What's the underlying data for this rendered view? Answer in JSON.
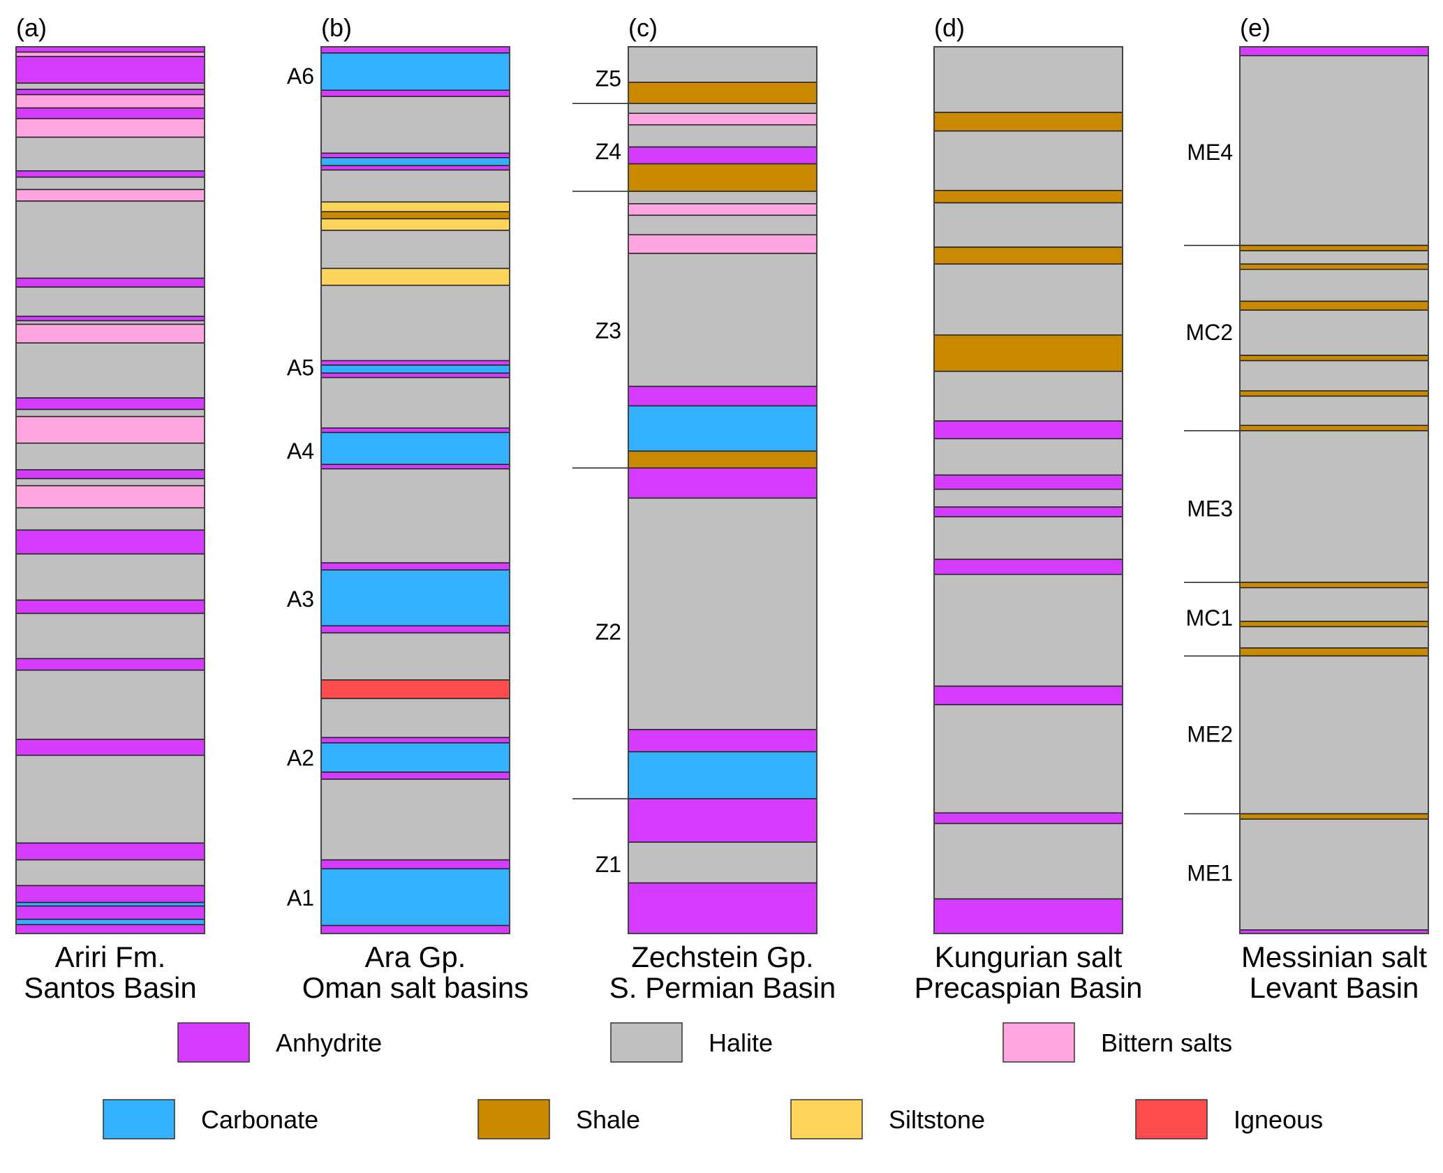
{
  "chart_data": {
    "type": "stratigraphic-columns",
    "title": "",
    "depth_scale": "relative position from top (0) to base (100) of each column",
    "lithology_colors": {
      "Anhydrite": "#d63cff",
      "Halite": "#c0c0c0",
      "Bittern salts": "#ffa6e0",
      "Carbonate": "#33b1ff",
      "Shale": "#c98a00",
      "Siltstone": "#ffd45a",
      "Igneous": "#ff4b4b"
    },
    "legend": [
      {
        "label": "Anhydrite",
        "row": 1
      },
      {
        "label": "Halite",
        "row": 1
      },
      {
        "label": "Bittern salts",
        "row": 1
      },
      {
        "label": "Carbonate",
        "row": 2
      },
      {
        "label": "Shale",
        "row": 2
      },
      {
        "label": "Siltstone",
        "row": 2
      },
      {
        "label": "Igneous",
        "row": 2
      }
    ],
    "columns": [
      {
        "panel": "(a)",
        "title_line1": "Ariri Fm.",
        "title_line2": "Santos Basin",
        "unit_labels": [],
        "unit_boundaries": [],
        "layers": [
          [
            "Anhydrite",
            0.0,
            0.6
          ],
          [
            "Bittern salts",
            0.6,
            1.1
          ],
          [
            "Anhydrite",
            1.1,
            4.1
          ],
          [
            "Halite",
            4.1,
            4.8
          ],
          [
            "Anhydrite",
            4.8,
            5.4
          ],
          [
            "Bittern salts",
            5.4,
            6.9
          ],
          [
            "Anhydrite",
            6.9,
            8.1
          ],
          [
            "Bittern salts",
            8.1,
            10.2
          ],
          [
            "Halite",
            10.2,
            14.0
          ],
          [
            "Anhydrite",
            14.0,
            14.7
          ],
          [
            "Halite",
            14.7,
            16.1
          ],
          [
            "Bittern salts",
            16.1,
            17.4
          ],
          [
            "Halite",
            17.4,
            26.1
          ],
          [
            "Anhydrite",
            26.1,
            27.1
          ],
          [
            "Halite",
            27.1,
            30.4
          ],
          [
            "Anhydrite",
            30.4,
            30.9
          ],
          [
            "Halite",
            30.9,
            31.3
          ],
          [
            "Bittern salts",
            31.3,
            33.4
          ],
          [
            "Halite",
            33.4,
            39.6
          ],
          [
            "Anhydrite",
            39.6,
            40.9
          ],
          [
            "Halite",
            40.9,
            41.7
          ],
          [
            "Bittern salts",
            41.7,
            44.7
          ],
          [
            "Halite",
            44.7,
            47.7
          ],
          [
            "Anhydrite",
            47.7,
            48.7
          ],
          [
            "Halite",
            48.7,
            49.5
          ],
          [
            "Bittern salts",
            49.5,
            52.0
          ],
          [
            "Halite",
            52.0,
            54.5
          ],
          [
            "Anhydrite",
            54.5,
            57.2
          ],
          [
            "Halite",
            57.2,
            62.4
          ],
          [
            "Anhydrite",
            62.4,
            63.9
          ],
          [
            "Halite",
            63.9,
            69.0
          ],
          [
            "Anhydrite",
            69.0,
            70.3
          ],
          [
            "Halite",
            70.3,
            78.1
          ],
          [
            "Anhydrite",
            78.1,
            79.9
          ],
          [
            "Halite",
            79.9,
            89.8
          ],
          [
            "Anhydrite",
            89.8,
            91.7
          ],
          [
            "Halite",
            91.7,
            94.6
          ],
          [
            "Anhydrite",
            94.6,
            96.5
          ],
          [
            "Carbonate",
            96.5,
            96.9
          ],
          [
            "Anhydrite",
            96.9,
            98.4
          ],
          [
            "Carbonate",
            98.4,
            99.0
          ],
          [
            "Anhydrite",
            99.0,
            100.0
          ]
        ]
      },
      {
        "panel": "(b)",
        "title_line1": "Ara Gp.",
        "title_line2": "Oman salt basins",
        "unit_labels": [
          {
            "text": "A6",
            "at": 3.3
          },
          {
            "text": "A5",
            "at": 36.2
          },
          {
            "text": "A4",
            "at": 45.6
          },
          {
            "text": "A3",
            "at": 62.3
          },
          {
            "text": "A2",
            "at": 80.2
          },
          {
            "text": "A1",
            "at": 96.0
          }
        ],
        "unit_boundaries": [],
        "layers": [
          [
            "Anhydrite",
            0.0,
            0.7
          ],
          [
            "Carbonate",
            0.7,
            4.9
          ],
          [
            "Anhydrite",
            4.9,
            5.6
          ],
          [
            "Halite",
            5.6,
            12.0
          ],
          [
            "Anhydrite",
            12.0,
            12.5
          ],
          [
            "Carbonate",
            12.5,
            13.4
          ],
          [
            "Anhydrite",
            13.4,
            13.9
          ],
          [
            "Halite",
            13.9,
            17.5
          ],
          [
            "Siltstone",
            17.5,
            18.6
          ],
          [
            "Shale",
            18.6,
            19.4
          ],
          [
            "Siltstone",
            19.4,
            20.7
          ],
          [
            "Halite",
            20.7,
            25.0
          ],
          [
            "Siltstone",
            25.0,
            26.9
          ],
          [
            "Halite",
            26.9,
            35.4
          ],
          [
            "Anhydrite",
            35.4,
            35.9
          ],
          [
            "Carbonate",
            35.9,
            36.8
          ],
          [
            "Anhydrite",
            36.8,
            37.3
          ],
          [
            "Halite",
            37.3,
            43.0
          ],
          [
            "Anhydrite",
            43.0,
            43.5
          ],
          [
            "Carbonate",
            43.5,
            47.1
          ],
          [
            "Anhydrite",
            47.1,
            47.6
          ],
          [
            "Halite",
            47.6,
            58.2
          ],
          [
            "Anhydrite",
            58.2,
            59.0
          ],
          [
            "Carbonate",
            59.0,
            65.3
          ],
          [
            "Anhydrite",
            65.3,
            66.1
          ],
          [
            "Halite",
            66.1,
            71.4
          ],
          [
            "Igneous",
            71.4,
            73.5
          ],
          [
            "Halite",
            73.5,
            77.9
          ],
          [
            "Anhydrite",
            77.9,
            78.5
          ],
          [
            "Carbonate",
            78.5,
            81.8
          ],
          [
            "Anhydrite",
            81.8,
            82.6
          ],
          [
            "Halite",
            82.6,
            91.7
          ],
          [
            "Anhydrite",
            91.7,
            92.7
          ],
          [
            "Carbonate",
            92.7,
            99.1
          ],
          [
            "Anhydrite",
            99.1,
            100.0
          ]
        ]
      },
      {
        "panel": "(c)",
        "title_line1": "Zechstein Gp.",
        "title_line2": "S. Permian Basin",
        "unit_labels": [
          {
            "text": "Z5",
            "at": 3.6
          },
          {
            "text": "Z4",
            "at": 11.8
          },
          {
            "text": "Z3",
            "at": 32.0
          },
          {
            "text": "Z2",
            "at": 66.0
          },
          {
            "text": "Z1",
            "at": 92.2
          }
        ],
        "unit_boundaries": [
          6.4,
          16.3,
          47.5,
          84.8
        ],
        "layers": [
          [
            "Halite",
            0.0,
            4.0
          ],
          [
            "Shale",
            4.0,
            6.4
          ],
          [
            "Halite",
            6.4,
            7.5
          ],
          [
            "Bittern salts",
            7.5,
            8.8
          ],
          [
            "Halite",
            8.8,
            11.3
          ],
          [
            "Anhydrite",
            11.3,
            13.2
          ],
          [
            "Shale",
            13.2,
            16.3
          ],
          [
            "Halite",
            16.3,
            17.7
          ],
          [
            "Bittern salts",
            17.7,
            19.0
          ],
          [
            "Halite",
            19.0,
            21.2
          ],
          [
            "Bittern salts",
            21.2,
            23.3
          ],
          [
            "Halite",
            23.3,
            38.3
          ],
          [
            "Anhydrite",
            38.3,
            40.5
          ],
          [
            "Carbonate",
            40.5,
            45.6
          ],
          [
            "Shale",
            45.6,
            47.5
          ],
          [
            "Anhydrite",
            47.5,
            50.9
          ],
          [
            "Halite",
            50.9,
            77.0
          ],
          [
            "Anhydrite",
            77.0,
            79.5
          ],
          [
            "Carbonate",
            79.5,
            84.8
          ],
          [
            "Anhydrite",
            84.8,
            89.7
          ],
          [
            "Halite",
            89.7,
            94.3
          ],
          [
            "Anhydrite",
            94.3,
            100.0
          ]
        ]
      },
      {
        "panel": "(d)",
        "title_line1": "Kungurian salt",
        "title_line2": "Precaspian Basin",
        "unit_labels": [],
        "unit_boundaries": [],
        "layers": [
          [
            "Halite",
            0.0,
            7.4
          ],
          [
            "Shale",
            7.4,
            9.5
          ],
          [
            "Halite",
            9.5,
            16.2
          ],
          [
            "Shale",
            16.2,
            17.6
          ],
          [
            "Halite",
            17.6,
            22.6
          ],
          [
            "Shale",
            22.6,
            24.5
          ],
          [
            "Halite",
            24.5,
            32.5
          ],
          [
            "Shale",
            32.5,
            36.6
          ],
          [
            "Halite",
            36.6,
            42.2
          ],
          [
            "Anhydrite",
            42.2,
            44.2
          ],
          [
            "Halite",
            44.2,
            48.3
          ],
          [
            "Anhydrite",
            48.3,
            49.9
          ],
          [
            "Halite",
            49.9,
            51.9
          ],
          [
            "Anhydrite",
            51.9,
            53.0
          ],
          [
            "Halite",
            53.0,
            57.8
          ],
          [
            "Anhydrite",
            57.8,
            59.5
          ],
          [
            "Halite",
            59.5,
            72.1
          ],
          [
            "Anhydrite",
            72.1,
            74.2
          ],
          [
            "Halite",
            74.2,
            86.4
          ],
          [
            "Anhydrite",
            86.4,
            87.6
          ],
          [
            "Halite",
            87.6,
            96.1
          ],
          [
            "Anhydrite",
            96.1,
            100.0
          ]
        ]
      },
      {
        "panel": "(e)",
        "title_line1": "Messinian salt",
        "title_line2": "Levant Basin",
        "unit_labels": [
          {
            "text": "ME4",
            "at": 11.9
          },
          {
            "text": "MC2",
            "at": 32.2
          },
          {
            "text": "ME3",
            "at": 52.1
          },
          {
            "text": "MC1",
            "at": 64.4
          },
          {
            "text": "ME2",
            "at": 77.5
          },
          {
            "text": "ME1",
            "at": 93.2
          }
        ],
        "unit_boundaries": [
          22.4,
          43.3,
          60.4,
          68.7,
          86.5
        ],
        "layers": [
          [
            "Anhydrite",
            0.0,
            1.0
          ],
          [
            "Halite",
            1.0,
            22.4
          ],
          [
            "Shale",
            22.4,
            23.0
          ],
          [
            "Halite",
            23.0,
            24.5
          ],
          [
            "Shale",
            24.5,
            25.1
          ],
          [
            "Halite",
            25.1,
            28.7
          ],
          [
            "Shale",
            28.7,
            29.7
          ],
          [
            "Halite",
            29.7,
            34.8
          ],
          [
            "Shale",
            34.8,
            35.4
          ],
          [
            "Halite",
            35.4,
            38.8
          ],
          [
            "Shale",
            38.8,
            39.4
          ],
          [
            "Halite",
            39.4,
            42.7
          ],
          [
            "Shale",
            42.7,
            43.3
          ],
          [
            "Halite",
            43.3,
            60.4
          ],
          [
            "Shale",
            60.4,
            61.0
          ],
          [
            "Halite",
            61.0,
            64.8
          ],
          [
            "Shale",
            64.8,
            65.4
          ],
          [
            "Halite",
            65.4,
            67.8
          ],
          [
            "Shale",
            67.8,
            68.7
          ],
          [
            "Halite",
            68.7,
            86.5
          ],
          [
            "Shale",
            86.5,
            87.1
          ],
          [
            "Halite",
            87.1,
            99.6
          ],
          [
            "Anhydrite",
            99.6,
            100.0
          ]
        ]
      }
    ]
  }
}
